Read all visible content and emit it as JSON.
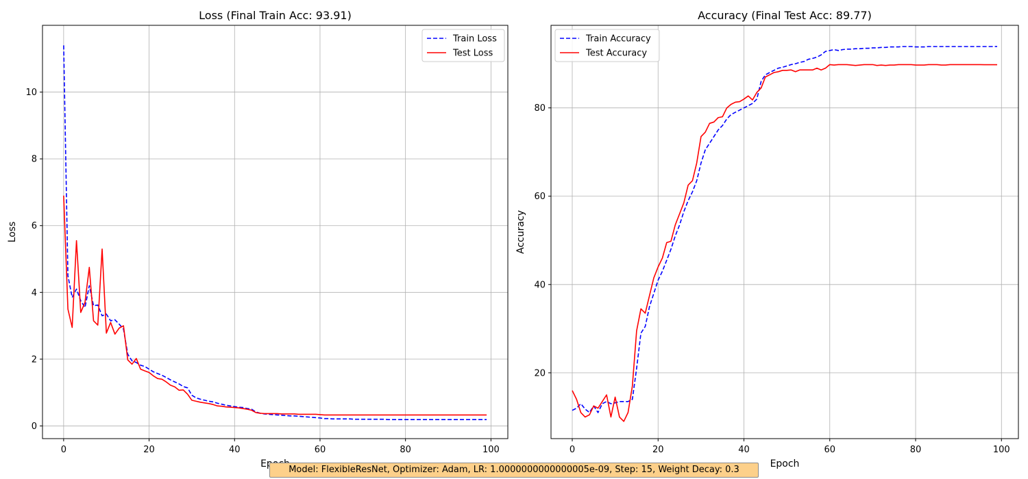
{
  "chart_data": [
    {
      "type": "line",
      "title": "Loss (Final Train Acc: 93.91)",
      "xlabel": "Epoch",
      "ylabel": "Loss",
      "xlim": [
        -4.95,
        103.95
      ],
      "ylim": [
        -0.38,
        12.0
      ],
      "xticks": [
        0,
        20,
        40,
        60,
        80,
        100
      ],
      "yticks": [
        0,
        2,
        4,
        6,
        8,
        10
      ],
      "grid": true,
      "legend_position": "upper right",
      "series": [
        {
          "name": "Train Loss",
          "color": "#0000ff",
          "style": "dashed",
          "values": [
            11.4,
            4.5,
            3.85,
            4.1,
            3.75,
            3.55,
            4.2,
            3.6,
            3.62,
            3.3,
            3.35,
            3.15,
            3.18,
            3.05,
            2.9,
            2.15,
            1.95,
            1.9,
            1.82,
            1.78,
            1.7,
            1.62,
            1.57,
            1.52,
            1.45,
            1.38,
            1.32,
            1.26,
            1.18,
            1.14,
            0.92,
            0.84,
            0.8,
            0.77,
            0.74,
            0.72,
            0.68,
            0.65,
            0.62,
            0.6,
            0.58,
            0.56,
            0.55,
            0.52,
            0.5,
            0.42,
            0.38,
            0.36,
            0.35,
            0.34,
            0.33,
            0.32,
            0.31,
            0.3,
            0.3,
            0.29,
            0.28,
            0.27,
            0.26,
            0.25,
            0.24,
            0.22,
            0.22,
            0.21,
            0.21,
            0.21,
            0.21,
            0.21,
            0.2,
            0.2,
            0.2,
            0.2,
            0.2,
            0.2,
            0.2,
            0.2,
            0.19,
            0.19,
            0.19,
            0.19,
            0.19,
            0.19,
            0.19,
            0.19,
            0.19,
            0.19,
            0.19,
            0.19,
            0.19,
            0.19,
            0.19,
            0.19,
            0.19,
            0.19,
            0.19,
            0.19,
            0.19,
            0.19,
            0.19,
            0.19
          ]
        },
        {
          "name": "Test Loss",
          "color": "#ff0000",
          "style": "solid",
          "values": [
            6.9,
            3.5,
            2.95,
            5.55,
            3.4,
            3.7,
            4.75,
            3.15,
            3.02,
            5.3,
            2.78,
            3.1,
            2.75,
            2.93,
            3.0,
            1.98,
            1.85,
            2.02,
            1.7,
            1.65,
            1.6,
            1.5,
            1.42,
            1.4,
            1.32,
            1.22,
            1.17,
            1.07,
            1.08,
            0.95,
            0.77,
            0.74,
            0.71,
            0.69,
            0.67,
            0.64,
            0.6,
            0.59,
            0.57,
            0.56,
            0.55,
            0.54,
            0.52,
            0.5,
            0.47,
            0.4,
            0.38,
            0.37,
            0.37,
            0.37,
            0.37,
            0.36,
            0.36,
            0.36,
            0.36,
            0.35,
            0.35,
            0.35,
            0.35,
            0.35,
            0.34,
            0.33,
            0.33,
            0.33,
            0.33,
            0.33,
            0.33,
            0.33,
            0.33,
            0.33,
            0.33,
            0.33,
            0.33,
            0.33,
            0.33,
            0.33,
            0.33,
            0.33,
            0.33,
            0.33,
            0.33,
            0.33,
            0.33,
            0.33,
            0.33,
            0.33,
            0.33,
            0.33,
            0.33,
            0.33,
            0.33,
            0.33,
            0.33,
            0.33,
            0.33,
            0.33,
            0.33,
            0.33,
            0.33,
            0.33
          ]
        }
      ]
    },
    {
      "type": "line",
      "title": "Accuracy (Final Test Acc: 89.77)",
      "xlabel": "Epoch",
      "ylabel": "Accuracy",
      "xlim": [
        -4.95,
        103.95
      ],
      "ylim": [
        5.1,
        98.7
      ],
      "xticks": [
        0,
        20,
        40,
        60,
        80,
        100
      ],
      "yticks": [
        20,
        40,
        60,
        80
      ],
      "grid": true,
      "legend_position": "upper left",
      "series": [
        {
          "name": "Train Accuracy",
          "color": "#0000ff",
          "style": "dashed",
          "values": [
            11.5,
            12.0,
            13.0,
            11.8,
            11.0,
            12.5,
            11.0,
            13.0,
            13.5,
            13.0,
            13.2,
            13.5,
            13.5,
            13.5,
            14.0,
            21.0,
            29.0,
            30.5,
            35.0,
            38.0,
            41.0,
            43.0,
            45.5,
            48.0,
            51.0,
            53.5,
            56.5,
            59.0,
            61.0,
            63.5,
            67.5,
            70.5,
            72.0,
            73.5,
            75.0,
            76.0,
            77.5,
            78.5,
            79.0,
            79.5,
            80.0,
            80.5,
            81.0,
            82.0,
            86.0,
            87.5,
            88.0,
            88.5,
            89.0,
            89.2,
            89.5,
            89.8,
            90.0,
            90.3,
            90.5,
            91.0,
            91.2,
            91.5,
            92.0,
            92.8,
            93.0,
            93.2,
            93.0,
            93.2,
            93.3,
            93.3,
            93.4,
            93.4,
            93.5,
            93.5,
            93.6,
            93.6,
            93.7,
            93.7,
            93.8,
            93.8,
            93.8,
            93.9,
            93.9,
            93.9,
            93.8,
            93.8,
            93.8,
            93.9,
            93.9,
            93.9,
            93.9,
            93.9,
            93.9,
            93.9,
            93.9,
            93.9,
            93.9,
            93.9,
            93.9,
            93.9,
            93.9,
            93.9,
            93.9,
            93.91
          ]
        },
        {
          "name": "Test Accuracy",
          "color": "#ff0000",
          "style": "solid",
          "values": [
            16.0,
            14.0,
            11.0,
            10.0,
            10.5,
            12.5,
            12.0,
            13.5,
            15.0,
            10.0,
            14.5,
            10.0,
            9.0,
            11.0,
            17.0,
            29.5,
            34.5,
            33.5,
            37.5,
            41.5,
            44.0,
            46.0,
            49.5,
            49.8,
            53.5,
            56.0,
            58.5,
            62.5,
            63.5,
            67.5,
            73.5,
            74.5,
            76.5,
            76.8,
            77.8,
            78.0,
            80.0,
            80.8,
            81.3,
            81.4,
            82.0,
            82.7,
            81.8,
            83.5,
            84.5,
            87.0,
            87.5,
            88.0,
            88.2,
            88.5,
            88.5,
            88.6,
            88.2,
            88.6,
            88.6,
            88.6,
            88.6,
            89.0,
            88.6,
            89.0,
            89.8,
            89.7,
            89.8,
            89.8,
            89.8,
            89.7,
            89.6,
            89.7,
            89.8,
            89.8,
            89.8,
            89.6,
            89.7,
            89.6,
            89.7,
            89.7,
            89.8,
            89.8,
            89.8,
            89.8,
            89.7,
            89.7,
            89.7,
            89.8,
            89.8,
            89.8,
            89.7,
            89.7,
            89.8,
            89.8,
            89.8,
            89.8,
            89.8,
            89.8,
            89.8,
            89.8,
            89.77,
            89.77,
            89.77,
            89.77
          ]
        }
      ]
    }
  ],
  "caption": "Model: FlexibleResNet, Optimizer: Adam, LR: 1.0000000000000005e-09, Step: 15, Weight Decay: 0.3"
}
